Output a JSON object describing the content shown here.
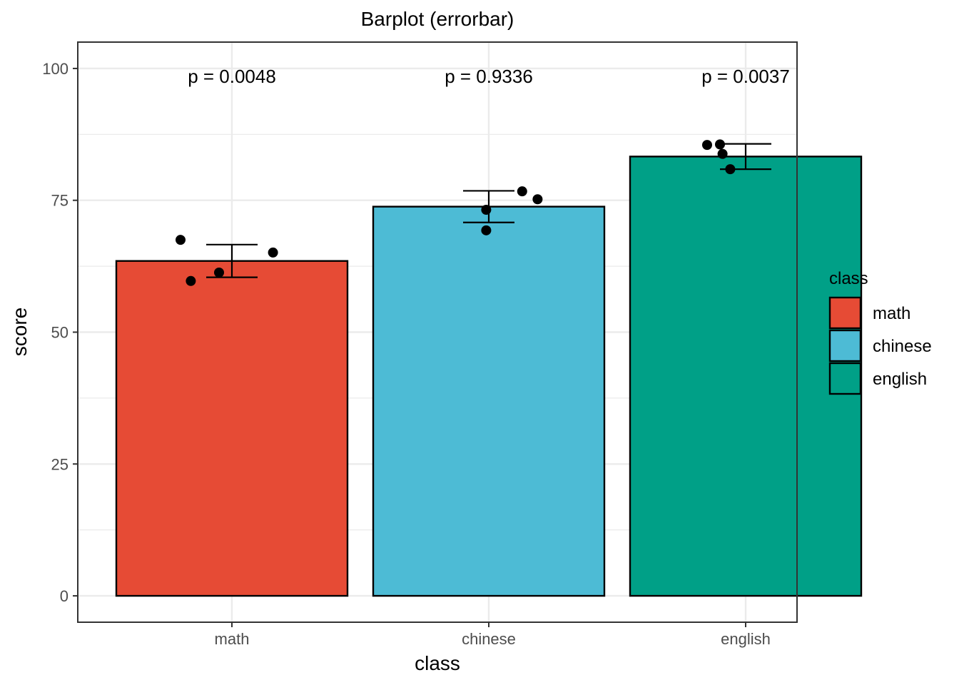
{
  "chart_data": {
    "type": "bar",
    "title": "Barplot (errorbar)",
    "xlabel": "class",
    "ylabel": "score",
    "ylim": [
      -5,
      105
    ],
    "yticks": [
      0,
      25,
      50,
      75,
      100
    ],
    "categories": [
      "math",
      "chinese",
      "english"
    ],
    "values": [
      63.5,
      73.8,
      83.3
    ],
    "error_bars": [
      {
        "low": 60.4,
        "high": 66.6
      },
      {
        "low": 70.8,
        "high": 76.8
      },
      {
        "low": 80.9,
        "high": 85.7
      }
    ],
    "points": [
      [
        {
          "dx": -0.2,
          "y": 67.5
        },
        {
          "dx": -0.16,
          "y": 59.7
        },
        {
          "dx": -0.05,
          "y": 61.3
        },
        {
          "dx": 0.16,
          "y": 65.1
        }
      ],
      [
        {
          "dx": -0.01,
          "y": 73.2
        },
        {
          "dx": -0.01,
          "y": 69.3
        },
        {
          "dx": 0.13,
          "y": 76.7
        },
        {
          "dx": 0.19,
          "y": 75.2
        }
      ],
      [
        {
          "dx": -0.15,
          "y": 85.5
        },
        {
          "dx": -0.1,
          "y": 85.6
        },
        {
          "dx": -0.09,
          "y": 83.8
        },
        {
          "dx": -0.06,
          "y": 80.9
        }
      ]
    ],
    "annotations": [
      "p = 0.0048",
      "p = 0.9336",
      "p = 0.0037"
    ],
    "annotation_y": 98.5,
    "colors": [
      "#E64B35",
      "#4DBBD5",
      "#00A087"
    ],
    "grid": true,
    "legend": {
      "title": "class",
      "position": "right",
      "entries": [
        "math",
        "chinese",
        "english"
      ]
    }
  }
}
